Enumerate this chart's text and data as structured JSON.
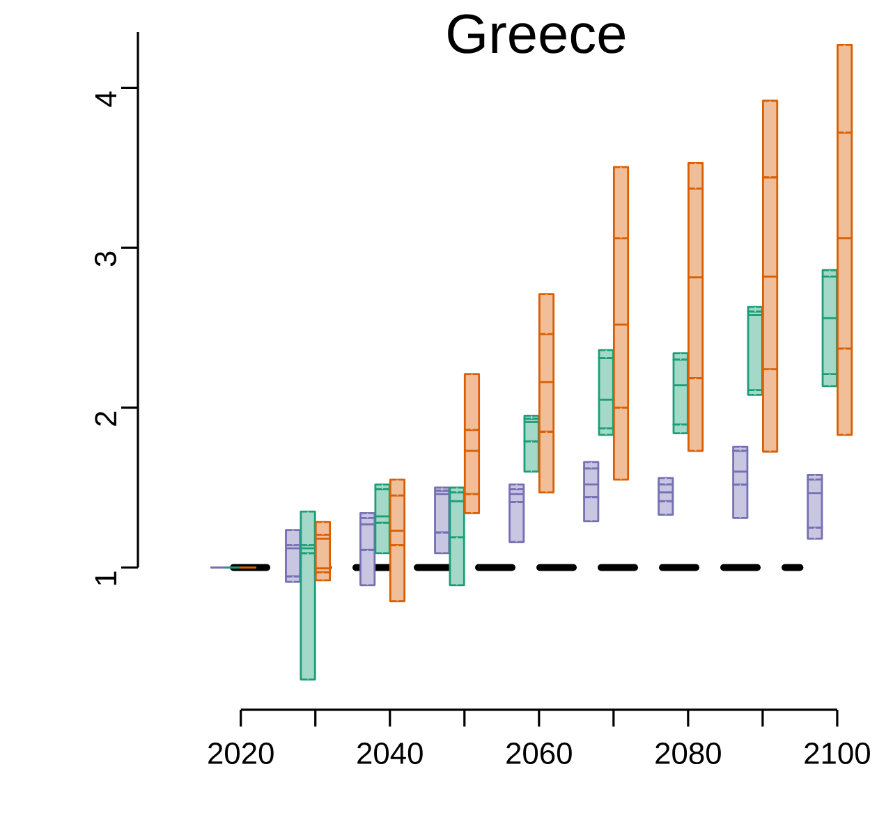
{
  "chart_data": {
    "type": "box",
    "title": "Greece",
    "categories": [
      "2020",
      null,
      "2040",
      null,
      "2060",
      null,
      "2080",
      null,
      "2100"
    ],
    "ylim": [
      0.11,
      4.35
    ],
    "yticks": [
      1,
      2,
      3,
      4
    ],
    "ref_lines": [
      {
        "axis": "y",
        "value": 1,
        "color": "#000000",
        "line_style": "dashed"
      }
    ],
    "series": [
      {
        "color": "#7570b3",
        "boxes": [
          {
            "low": 1,
            "q1": 1,
            "median": 1,
            "q3": 1,
            "high": 1
          },
          {
            "low": 0.91,
            "q1": 0.945,
            "median": 1.12,
            "q3": 1.14,
            "high": 1.235
          },
          {
            "low": 0.89,
            "q1": 1.11,
            "median": 1.27,
            "q3": 1.31,
            "high": 1.34
          },
          {
            "low": 1.09,
            "q1": 1.22,
            "median": 1.46,
            "q3": 1.48,
            "high": 1.5
          },
          {
            "low": 1.16,
            "q1": 1.41,
            "median": 1.46,
            "q3": 1.49,
            "high": 1.52
          },
          {
            "low": 1.29,
            "q1": 1.44,
            "median": 1.52,
            "q3": 1.62,
            "high": 1.66
          },
          {
            "low": 1.33,
            "q1": 1.415,
            "median": 1.47,
            "q3": 1.52,
            "high": 1.56
          },
          {
            "low": 1.31,
            "q1": 1.52,
            "median": 1.6,
            "q3": 1.73,
            "high": 1.755
          },
          {
            "low": 1.18,
            "q1": 1.25,
            "median": 1.465,
            "q3": 1.55,
            "high": 1.58
          }
        ]
      },
      {
        "color": "#1b9e77",
        "boxes": [
          {
            "low": 1,
            "q1": 1,
            "median": 1,
            "q3": 1,
            "high": 1
          },
          {
            "low": 0.3,
            "q1": 1.09,
            "median": 1.12,
            "q3": 1.14,
            "high": 1.35
          },
          {
            "low": 1.09,
            "q1": 1.28,
            "median": 1.32,
            "q3": 1.49,
            "high": 1.52
          },
          {
            "low": 0.89,
            "q1": 1.19,
            "median": 1.415,
            "q3": 1.47,
            "high": 1.5
          },
          {
            "low": 1.6,
            "q1": 1.79,
            "median": 1.91,
            "q3": 1.93,
            "high": 1.95
          },
          {
            "low": 1.83,
            "q1": 1.87,
            "median": 2.05,
            "q3": 2.31,
            "high": 2.36
          },
          {
            "low": 1.84,
            "q1": 1.895,
            "median": 2.14,
            "q3": 2.3,
            "high": 2.34
          },
          {
            "low": 2.08,
            "q1": 2.11,
            "median": 2.58,
            "q3": 2.6,
            "high": 2.63
          },
          {
            "low": 2.135,
            "q1": 2.21,
            "median": 2.56,
            "q3": 2.82,
            "high": 2.86
          }
        ]
      },
      {
        "color": "#d95f02",
        "boxes": [
          {
            "low": 1,
            "q1": 1,
            "median": 1,
            "q3": 1,
            "high": 1
          },
          {
            "low": 0.92,
            "q1": 0.97,
            "median": 1.18,
            "q3": 1.205,
            "high": 1.285,
            "mean": 0.995
          },
          {
            "low": 0.79,
            "q1": 1.14,
            "median": 1.23,
            "q3": 1.45,
            "high": 1.55
          },
          {
            "low": 1.34,
            "q1": 1.46,
            "median": 1.73,
            "q3": 1.86,
            "high": 2.21
          },
          {
            "low": 1.47,
            "q1": 1.85,
            "median": 2.16,
            "q3": 2.46,
            "high": 2.71
          },
          {
            "low": 1.55,
            "q1": 2.0,
            "median": 2.52,
            "q3": 3.06,
            "high": 3.505
          },
          {
            "low": 1.73,
            "q1": 2.185,
            "median": 2.815,
            "q3": 3.37,
            "high": 3.53
          },
          {
            "low": 1.725,
            "q1": 2.24,
            "median": 2.82,
            "q3": 3.44,
            "high": 3.92
          },
          {
            "low": 1.83,
            "q1": 2.37,
            "median": 3.06,
            "q3": 3.72,
            "high": 4.27
          }
        ]
      }
    ]
  }
}
